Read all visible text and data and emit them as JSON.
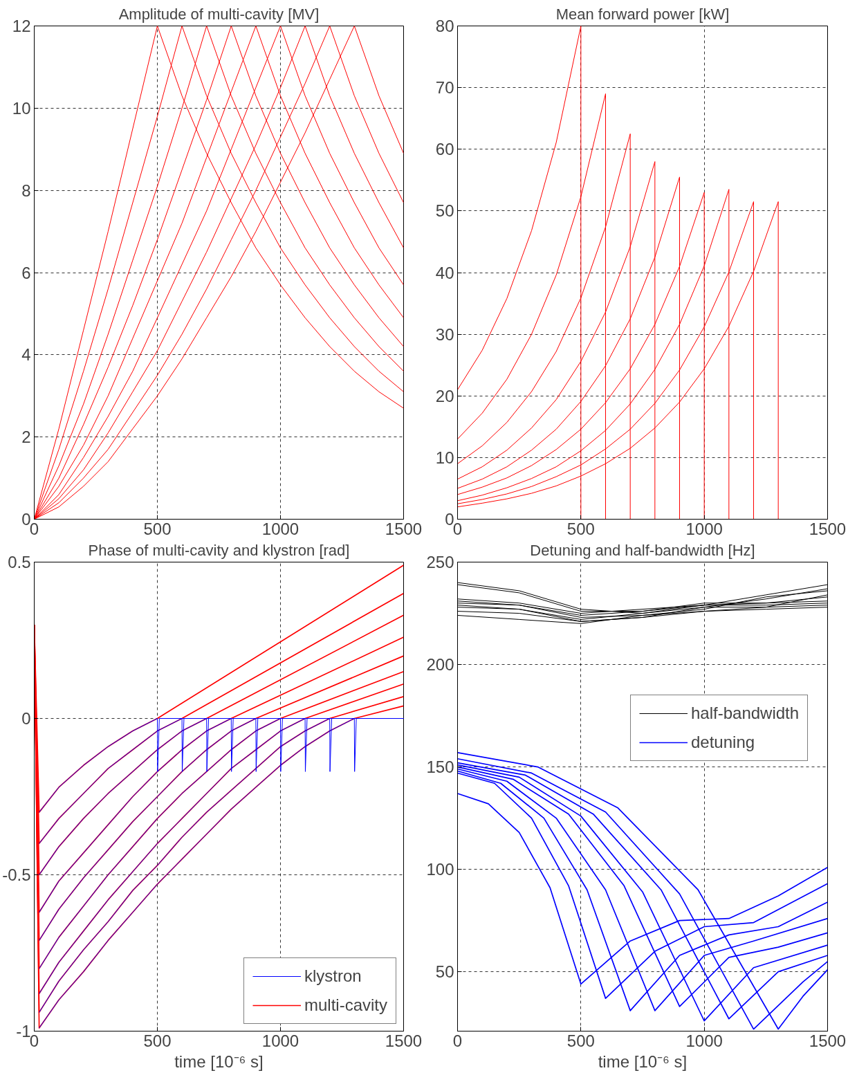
{
  "chart_data": [
    {
      "type": "line",
      "title": "Amplitude of multi-cavity [MV]",
      "xlim": [
        0,
        1500
      ],
      "ylim": [
        0,
        12
      ],
      "xticks": [
        0,
        500,
        1000,
        1500
      ],
      "yticks": [
        0,
        2,
        4,
        6,
        8,
        10,
        12
      ],
      "grid": true,
      "x": [
        0,
        100,
        200,
        300,
        400,
        500,
        600,
        700,
        800,
        900,
        1000,
        1100,
        1200,
        1300,
        1400,
        1500
      ],
      "series": [
        {
          "color": "#ff0000",
          "values": [
            0,
            2.2,
            4.6,
            7.0,
            9.5,
            12,
            10.3,
            8.9,
            7.7,
            6.6,
            5.7,
            4.9,
            4.2,
            3.6,
            3.1,
            2.7
          ]
        },
        {
          "color": "#ff0000",
          "values": [
            0,
            1.7,
            3.6,
            5.6,
            7.7,
            9.8,
            12,
            10.3,
            8.9,
            7.7,
            6.6,
            5.7,
            4.9,
            4.2,
            3.6,
            3.1
          ]
        },
        {
          "color": "#ff0000",
          "values": [
            0,
            1.3,
            2.8,
            4.5,
            6.3,
            8.1,
            10.0,
            12,
            10.3,
            8.9,
            7.7,
            6.6,
            5.7,
            4.9,
            4.2,
            3.6
          ]
        },
        {
          "color": "#ff0000",
          "values": [
            0,
            1.0,
            2.3,
            3.7,
            5.2,
            6.8,
            8.5,
            10.2,
            12,
            10.3,
            8.9,
            7.7,
            6.6,
            5.7,
            4.9,
            4.2
          ]
        },
        {
          "color": "#ff0000",
          "values": [
            0,
            0.8,
            1.8,
            3.0,
            4.4,
            5.8,
            7.2,
            8.8,
            10.4,
            12,
            10.3,
            8.9,
            7.7,
            6.6,
            5.7,
            4.9
          ]
        },
        {
          "color": "#ff0000",
          "values": [
            0,
            0.6,
            1.5,
            2.5,
            3.6,
            4.9,
            6.2,
            7.5,
            9.0,
            10.5,
            12,
            10.3,
            8.9,
            7.7,
            6.6,
            5.7
          ]
        },
        {
          "color": "#ff0000",
          "values": [
            0,
            0.5,
            1.2,
            2.1,
            3.1,
            4.1,
            5.3,
            6.5,
            7.8,
            9.1,
            10.5,
            12,
            10.3,
            8.9,
            7.7,
            6.6
          ]
        },
        {
          "color": "#ff0000",
          "values": [
            0,
            0.4,
            1.0,
            1.7,
            2.6,
            3.5,
            4.5,
            5.6,
            6.8,
            8.0,
            9.3,
            10.6,
            12,
            10.3,
            8.9,
            7.7
          ]
        },
        {
          "color": "#ff0000",
          "values": [
            0,
            0.3,
            0.8,
            1.4,
            2.2,
            3.0,
            3.9,
            4.9,
            5.9,
            7.0,
            8.2,
            9.4,
            10.7,
            12,
            10.3,
            8.9
          ]
        }
      ]
    },
    {
      "type": "line",
      "title": "Mean forward power [kW]",
      "xlim": [
        0,
        1500
      ],
      "ylim": [
        0,
        80
      ],
      "xticks": [
        0,
        500,
        1000,
        1500
      ],
      "yticks": [
        0,
        10,
        20,
        30,
        40,
        50,
        60,
        70,
        80
      ],
      "grid": true,
      "series": [
        {
          "color": "#ff0000",
          "x": [
            0,
            100,
            200,
            300,
            400,
            500,
            500,
            1500
          ],
          "values": [
            21,
            27.4,
            35.8,
            46.8,
            61.1,
            80,
            0,
            0
          ]
        },
        {
          "color": "#ff0000",
          "x": [
            0,
            100,
            200,
            300,
            400,
            500,
            600,
            600,
            1500
          ],
          "values": [
            13,
            17.2,
            22.7,
            30.0,
            39.6,
            52.3,
            69,
            0,
            0
          ]
        },
        {
          "color": "#ff0000",
          "x": [
            0,
            100,
            200,
            300,
            400,
            500,
            600,
            700,
            700,
            1500
          ],
          "values": [
            9,
            11.9,
            15.7,
            20.7,
            27.2,
            35.9,
            47.4,
            62.5,
            0,
            0
          ]
        },
        {
          "color": "#ff0000",
          "x": [
            0,
            100,
            200,
            300,
            400,
            500,
            600,
            700,
            800,
            800,
            1500
          ],
          "values": [
            6.5,
            8.5,
            11.2,
            14.8,
            19.4,
            25.6,
            33.6,
            44.2,
            58,
            0,
            0
          ]
        },
        {
          "color": "#ff0000",
          "x": [
            0,
            100,
            200,
            300,
            400,
            500,
            600,
            700,
            800,
            900,
            900,
            1500
          ],
          "values": [
            5,
            6.5,
            8.5,
            11.2,
            14.6,
            19.1,
            24.9,
            32.5,
            42.5,
            55.5,
            0,
            0
          ]
        },
        {
          "color": "#ff0000",
          "x": [
            0,
            100,
            200,
            300,
            400,
            500,
            600,
            700,
            800,
            900,
            1000,
            1000,
            1500
          ],
          "values": [
            4,
            5.2,
            6.7,
            8.7,
            11.3,
            14.6,
            18.9,
            24.4,
            31.6,
            41.0,
            53,
            0,
            0
          ]
        },
        {
          "color": "#ff0000",
          "x": [
            0,
            100,
            200,
            300,
            400,
            500,
            600,
            700,
            800,
            900,
            1000,
            1100,
            1100,
            1500
          ],
          "values": [
            3,
            3.9,
            5.1,
            6.6,
            8.5,
            11.1,
            14.4,
            18.7,
            24.3,
            31.6,
            41.1,
            53.5,
            0,
            0
          ]
        },
        {
          "color": "#ff0000",
          "x": [
            0,
            100,
            200,
            300,
            400,
            500,
            600,
            700,
            800,
            900,
            1000,
            1100,
            1200,
            1200,
            1500
          ],
          "values": [
            2.5,
            3.2,
            4.1,
            5.3,
            6.9,
            8.8,
            11.4,
            14.6,
            18.8,
            24.2,
            31.2,
            40.1,
            51.5,
            0,
            0
          ]
        },
        {
          "color": "#ff0000",
          "x": [
            0,
            100,
            200,
            300,
            400,
            500,
            600,
            700,
            800,
            900,
            1000,
            1100,
            1200,
            1300,
            1300,
            1500
          ],
          "values": [
            2,
            2.6,
            3.3,
            4.2,
            5.4,
            7.0,
            9.0,
            11.5,
            14.8,
            19.0,
            24.4,
            31.3,
            40.2,
            51.5,
            0,
            0
          ]
        }
      ]
    },
    {
      "type": "line",
      "title": "Phase of multi-cavity and klystron [rad]",
      "xlabel": "time [10⁻⁶ s]",
      "xlim": [
        0,
        1500
      ],
      "ylim": [
        -1,
        0.5
      ],
      "xticks": [
        0,
        500,
        1000,
        1500
      ],
      "yticks": [
        -1,
        -0.5,
        0,
        0.5
      ],
      "grid": true,
      "legend": "bottom right",
      "series": [
        {
          "name": "klystron",
          "color": "#0000ff",
          "x": [
            20,
            100,
            200,
            300,
            400,
            500,
            501,
            508,
            1500
          ],
          "values": [
            -0.3,
            -0.22,
            -0.15,
            -0.09,
            -0.04,
            0,
            -0.17,
            0,
            0
          ]
        },
        {
          "color": "#0000ff",
          "x": [
            20,
            100,
            200,
            300,
            400,
            500,
            600,
            601,
            608,
            1500
          ],
          "values": [
            -0.4,
            -0.32,
            -0.24,
            -0.16,
            -0.1,
            -0.04,
            0,
            -0.17,
            0,
            0
          ]
        },
        {
          "color": "#0000ff",
          "x": [
            20,
            100,
            200,
            300,
            400,
            500,
            600,
            700,
            701,
            708,
            1500
          ],
          "values": [
            -0.5,
            -0.41,
            -0.32,
            -0.24,
            -0.17,
            -0.1,
            -0.04,
            0,
            -0.17,
            0,
            0
          ]
        },
        {
          "color": "#0000ff",
          "x": [
            20,
            100,
            200,
            300,
            400,
            500,
            600,
            700,
            800,
            801,
            808,
            1500
          ],
          "values": [
            -0.62,
            -0.52,
            -0.43,
            -0.34,
            -0.25,
            -0.17,
            -0.1,
            -0.04,
            0,
            -0.17,
            0,
            0
          ]
        },
        {
          "color": "#0000ff",
          "x": [
            20,
            100,
            200,
            300,
            400,
            500,
            600,
            700,
            800,
            900,
            901,
            908,
            1500
          ],
          "values": [
            -0.71,
            -0.61,
            -0.51,
            -0.42,
            -0.33,
            -0.25,
            -0.17,
            -0.1,
            -0.04,
            0,
            -0.17,
            0,
            0
          ]
        },
        {
          "color": "#0000ff",
          "x": [
            20,
            100,
            200,
            300,
            400,
            500,
            600,
            700,
            800,
            900,
            1000,
            1001,
            1008,
            1500
          ],
          "values": [
            -0.8,
            -0.7,
            -0.6,
            -0.5,
            -0.41,
            -0.32,
            -0.24,
            -0.17,
            -0.1,
            -0.04,
            0,
            -0.17,
            0,
            0
          ]
        },
        {
          "color": "#0000ff",
          "x": [
            20,
            100,
            200,
            300,
            400,
            500,
            600,
            700,
            800,
            900,
            1000,
            1100,
            1101,
            1108,
            1500
          ],
          "values": [
            -0.88,
            -0.78,
            -0.68,
            -0.58,
            -0.49,
            -0.4,
            -0.32,
            -0.24,
            -0.16,
            -0.1,
            -0.04,
            0,
            -0.17,
            0,
            0
          ]
        },
        {
          "color": "#0000ff",
          "x": [
            20,
            100,
            200,
            300,
            400,
            500,
            600,
            700,
            800,
            900,
            1000,
            1100,
            1200,
            1201,
            1208,
            1500
          ],
          "values": [
            -0.94,
            -0.84,
            -0.74,
            -0.65,
            -0.55,
            -0.47,
            -0.38,
            -0.3,
            -0.23,
            -0.16,
            -0.09,
            -0.04,
            0,
            -0.17,
            0,
            0
          ]
        },
        {
          "color": "#0000ff",
          "x": [
            20,
            100,
            200,
            300,
            400,
            500,
            600,
            700,
            800,
            900,
            1000,
            1100,
            1200,
            1300,
            1301,
            1308,
            1500
          ],
          "values": [
            -0.99,
            -0.9,
            -0.81,
            -0.71,
            -0.62,
            -0.53,
            -0.45,
            -0.37,
            -0.29,
            -0.22,
            -0.15,
            -0.09,
            -0.04,
            0,
            -0.17,
            0,
            0
          ]
        },
        {
          "name": "multi-cavity",
          "color": "#ff0000",
          "x": [
            0,
            20,
            100,
            200,
            300,
            400,
            500,
            1500
          ],
          "values": [
            0.3,
            -0.3,
            -0.22,
            -0.15,
            -0.09,
            -0.04,
            0,
            0.49
          ]
        },
        {
          "color": "#ff0000",
          "x": [
            0,
            20,
            100,
            200,
            300,
            400,
            500,
            600,
            1500
          ],
          "values": [
            0.3,
            -0.4,
            -0.32,
            -0.24,
            -0.16,
            -0.1,
            -0.04,
            0,
            0.4
          ]
        },
        {
          "color": "#ff0000",
          "x": [
            0,
            20,
            100,
            200,
            300,
            400,
            500,
            600,
            700,
            1500
          ],
          "values": [
            0.3,
            -0.5,
            -0.41,
            -0.32,
            -0.24,
            -0.17,
            -0.1,
            -0.04,
            0,
            0.33
          ]
        },
        {
          "color": "#ff0000",
          "x": [
            0,
            20,
            100,
            200,
            300,
            400,
            500,
            600,
            700,
            800,
            1500
          ],
          "values": [
            0.3,
            -0.62,
            -0.52,
            -0.43,
            -0.34,
            -0.25,
            -0.17,
            -0.1,
            -0.04,
            0,
            0.26
          ]
        },
        {
          "color": "#ff0000",
          "x": [
            0,
            20,
            100,
            200,
            300,
            400,
            500,
            600,
            700,
            800,
            900,
            1500
          ],
          "values": [
            0.3,
            -0.71,
            -0.61,
            -0.51,
            -0.42,
            -0.33,
            -0.25,
            -0.17,
            -0.1,
            -0.04,
            0,
            0.2
          ]
        },
        {
          "color": "#ff0000",
          "x": [
            0,
            20,
            100,
            200,
            300,
            400,
            500,
            600,
            700,
            800,
            900,
            1000,
            1500
          ],
          "values": [
            0.3,
            -0.8,
            -0.7,
            -0.6,
            -0.5,
            -0.41,
            -0.32,
            -0.24,
            -0.17,
            -0.1,
            -0.04,
            0,
            0.15
          ]
        },
        {
          "color": "#ff0000",
          "x": [
            0,
            20,
            100,
            200,
            300,
            400,
            500,
            600,
            700,
            800,
            900,
            1000,
            1100,
            1500
          ],
          "values": [
            0.3,
            -0.88,
            -0.78,
            -0.68,
            -0.58,
            -0.49,
            -0.4,
            -0.32,
            -0.24,
            -0.16,
            -0.1,
            -0.04,
            0,
            0.11
          ]
        },
        {
          "color": "#ff0000",
          "x": [
            0,
            20,
            100,
            200,
            300,
            400,
            500,
            600,
            700,
            800,
            900,
            1000,
            1100,
            1200,
            1500
          ],
          "values": [
            0.3,
            -0.94,
            -0.84,
            -0.74,
            -0.65,
            -0.55,
            -0.47,
            -0.38,
            -0.3,
            -0.23,
            -0.16,
            -0.09,
            -0.04,
            0,
            0.07
          ]
        },
        {
          "color": "#ff0000",
          "x": [
            0,
            20,
            100,
            200,
            300,
            400,
            500,
            600,
            700,
            800,
            900,
            1000,
            1100,
            1200,
            1300,
            1500
          ],
          "values": [
            0.3,
            -0.99,
            -0.9,
            -0.81,
            -0.71,
            -0.62,
            -0.53,
            -0.45,
            -0.37,
            -0.29,
            -0.22,
            -0.15,
            -0.09,
            -0.04,
            0,
            0.04
          ]
        }
      ]
    },
    {
      "type": "line",
      "title": "Detuning and half-bandwidth [Hz]",
      "xlabel": "time [10⁻⁶ s]",
      "xlim": [
        0,
        1500
      ],
      "ylim": [
        21,
        250
      ],
      "xticks": [
        0,
        500,
        1000,
        1500
      ],
      "yticks": [
        50,
        100,
        150,
        200,
        250
      ],
      "grid": true,
      "legend": "top right",
      "x": [
        0,
        250,
        500,
        750,
        1000,
        1250,
        1500
      ],
      "series": [
        {
          "name": "half-bandwidth",
          "color": "#000000",
          "values": [
            240,
            236,
            227,
            225,
            228,
            232,
            237
          ]
        },
        {
          "color": "#000000",
          "values": [
            239,
            235,
            226,
            226,
            229,
            234,
            239
          ]
        },
        {
          "color": "#000000",
          "values": [
            232,
            230,
            225,
            227,
            229,
            230,
            233
          ]
        },
        {
          "color": "#000000",
          "values": [
            230,
            229,
            224,
            226,
            230,
            230,
            231
          ]
        },
        {
          "color": "#000000",
          "values": [
            228,
            227,
            222,
            225,
            229,
            229,
            230
          ]
        },
        {
          "color": "#000000",
          "values": [
            226,
            225,
            221,
            223,
            228,
            228,
            229
          ]
        },
        {
          "color": "#000000",
          "values": [
            224,
            222,
            220,
            224,
            226,
            227,
            228
          ]
        },
        {
          "color": "#000000",
          "values": [
            231,
            229,
            223,
            224,
            227,
            233,
            236
          ]
        },
        {
          "color": "#000000",
          "values": [
            229,
            227,
            221,
            223,
            226,
            228,
            234
          ]
        },
        {
          "name": "detuning",
          "color": "#0000ff",
          "x": [
            0,
            125,
            250,
            375,
            500,
            700,
            900,
            1100,
            1300,
            1500
          ],
          "values": [
            137,
            132,
            118,
            91,
            44,
            65,
            75,
            76,
            87,
            101
          ]
        },
        {
          "color": "#0000ff",
          "x": [
            0,
            150,
            300,
            450,
            600,
            800,
            1000,
            1200,
            1500
          ],
          "values": [
            147,
            142,
            125,
            92,
            37,
            60,
            72,
            74,
            93
          ]
        },
        {
          "color": "#0000ff",
          "x": [
            0,
            175,
            350,
            525,
            700,
            900,
            1100,
            1300,
            1500
          ],
          "values": [
            148,
            142,
            125,
            90,
            31,
            58,
            68,
            72,
            84
          ]
        },
        {
          "color": "#0000ff",
          "x": [
            0,
            200,
            400,
            600,
            800,
            1000,
            1200,
            1500
          ],
          "values": [
            149,
            143,
            125,
            90,
            31,
            58,
            65,
            76
          ]
        },
        {
          "color": "#0000ff",
          "x": [
            0,
            225,
            450,
            675,
            900,
            1100,
            1300,
            1500
          ],
          "values": [
            150,
            144,
            127,
            92,
            33,
            57,
            62,
            69
          ]
        },
        {
          "color": "#0000ff",
          "x": [
            0,
            250,
            500,
            750,
            1000,
            1200,
            1500
          ],
          "values": [
            151,
            145,
            126,
            89,
            26,
            52,
            63
          ]
        },
        {
          "color": "#0000ff",
          "x": [
            0,
            275,
            550,
            825,
            1100,
            1300,
            1500
          ],
          "values": [
            152,
            146,
            127,
            90,
            27,
            50,
            58
          ]
        },
        {
          "color": "#0000ff",
          "x": [
            0,
            300,
            600,
            900,
            1200,
            1400,
            1500
          ],
          "values": [
            154,
            147,
            128,
            88,
            22,
            45,
            55
          ]
        },
        {
          "color": "#0000ff",
          "x": [
            0,
            325,
            650,
            975,
            1300,
            1400,
            1500
          ],
          "values": [
            157,
            150,
            130,
            90,
            22,
            38,
            51
          ]
        }
      ]
    }
  ]
}
